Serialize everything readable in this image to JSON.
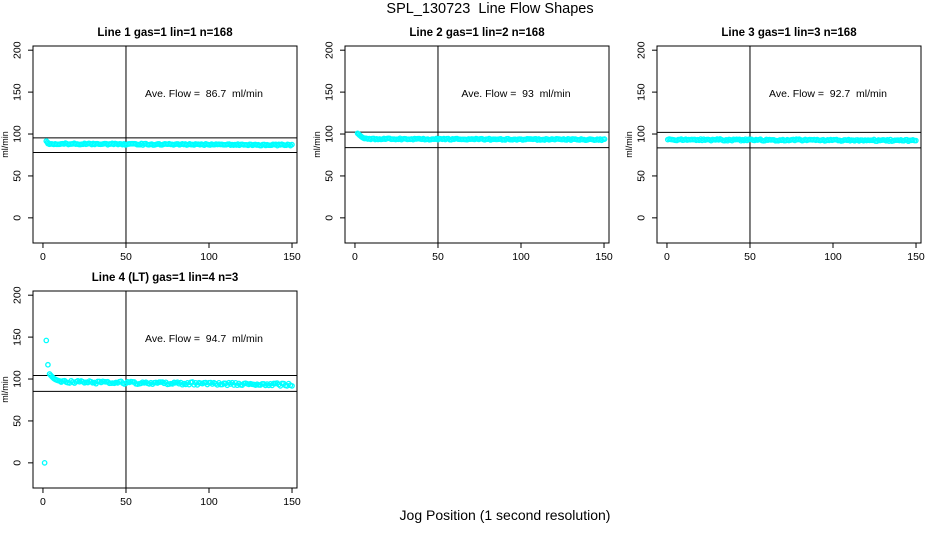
{
  "figure": {
    "title": "SPL_130723  Line Flow Shapes",
    "xlabel": "Jog Position (1 second resolution)",
    "background_color": "#ffffff",
    "axis_color": "#000000"
  },
  "chart_data": [
    {
      "type": "scatter",
      "title": "Line 1 gas=1 lin=1 n=168",
      "ylabel": "ml/min",
      "annotation": "Ave. Flow =  86.7  ml/min",
      "ave_flow_ml_min": 86.7,
      "n": 168,
      "xlim": [
        -6,
        153
      ],
      "ylim": [
        -30,
        205
      ],
      "xticks": [
        0,
        50,
        100,
        150
      ],
      "yticks": [
        0,
        50,
        100,
        150,
        200
      ],
      "vline_x": 50,
      "hlines": [
        95.4,
        78.0
      ],
      "marker_color": "#00FFFF",
      "seed": 1,
      "series": {
        "transient_points": [
          [
            2,
            91.5
          ],
          [
            2.7,
            90.2
          ]
        ],
        "band": {
          "x_from": 3,
          "x_to": 150.5,
          "x_step": 0.88,
          "y_start": 88.4,
          "y_end": 86.9,
          "jitter": 0.9
        }
      }
    },
    {
      "type": "scatter",
      "title": "Line 2 gas=1 lin=2 n=168",
      "ylabel": "ml/min",
      "annotation": "Ave. Flow =  93  ml/min",
      "ave_flow_ml_min": 93,
      "n": 168,
      "xlim": [
        -6,
        153
      ],
      "ylim": [
        -30,
        205
      ],
      "xticks": [
        0,
        50,
        100,
        150
      ],
      "yticks": [
        0,
        50,
        100,
        150,
        200
      ],
      "vline_x": 50,
      "hlines": [
        102.3,
        83.7
      ],
      "marker_color": "#00FFFF",
      "seed": 2,
      "series": {
        "transient_points": [
          [
            1.6,
            100.8
          ],
          [
            2.2,
            99.8
          ],
          [
            2.8,
            98.6
          ],
          [
            3.4,
            97.6
          ],
          [
            4.0,
            96.6
          ],
          [
            4.6,
            95.8
          ],
          [
            5.2,
            95.1
          ],
          [
            5.8,
            94.6
          ]
        ],
        "band": {
          "x_from": 6,
          "x_to": 150.5,
          "x_step": 0.88,
          "y_start": 94.2,
          "y_end": 93.3,
          "jitter": 0.8
        }
      }
    },
    {
      "type": "scatter",
      "title": "Line 3 gas=1 lin=3 n=168",
      "ylabel": "ml/min",
      "annotation": "Ave. Flow =  92.7  ml/min",
      "ave_flow_ml_min": 92.7,
      "n": 168,
      "xlim": [
        -6,
        153
      ],
      "ylim": [
        -30,
        205
      ],
      "xticks": [
        0,
        50,
        100,
        150
      ],
      "yticks": [
        0,
        50,
        100,
        150,
        200
      ],
      "vline_x": 50,
      "hlines": [
        102.0,
        83.4
      ],
      "marker_color": "#00FFFF",
      "seed": 3,
      "series": {
        "transient_points": [],
        "band": {
          "x_from": 0.5,
          "x_to": 150.5,
          "x_step": 0.9,
          "y_start": 93.2,
          "y_end": 92.4,
          "jitter": 1.0
        }
      }
    },
    {
      "type": "scatter",
      "title": "Line 4 (LT) gas=1 lin=4 n=3",
      "ylabel": "ml/min",
      "annotation": "Ave. Flow =  94.7  ml/min",
      "ave_flow_ml_min": 94.7,
      "n": 3,
      "xlim": [
        -6,
        153
      ],
      "ylim": [
        -30,
        205
      ],
      "xticks": [
        0,
        50,
        100,
        150
      ],
      "yticks": [
        0,
        50,
        100,
        150,
        200
      ],
      "vline_x": 50,
      "hlines": [
        104.2,
        85.2
      ],
      "marker_color": "#00FFFF",
      "seed": 4,
      "series": {
        "transient_points": [
          [
            1,
            0
          ],
          [
            2,
            146
          ],
          [
            3,
            117
          ],
          [
            4,
            106
          ],
          [
            4.7,
            104.3
          ],
          [
            5.4,
            102.8
          ],
          [
            6.1,
            101.5
          ],
          [
            6.8,
            100.4
          ],
          [
            7.5,
            99.5
          ],
          [
            8.2,
            98.8
          ],
          [
            9,
            98.2
          ],
          [
            10,
            97.6
          ],
          [
            11,
            97.1
          ]
        ],
        "band": {
          "x_from": 11,
          "x_to": 150.5,
          "x_step": 1.0,
          "y_start": 96.6,
          "y_end": 93.3,
          "jitter": 1.7
        }
      }
    }
  ]
}
